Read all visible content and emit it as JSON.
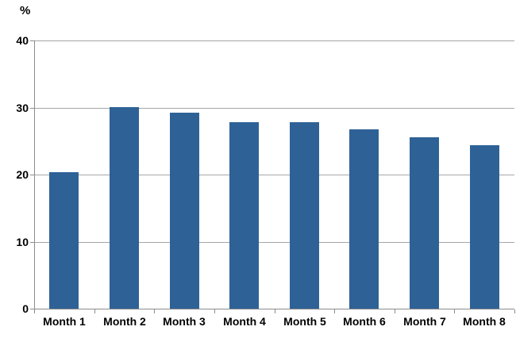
{
  "chart_data": {
    "type": "bar",
    "unit_label": "%",
    "categories": [
      "Month 1",
      "Month 2",
      "Month 3",
      "Month 4",
      "Month 5",
      "Month 6",
      "Month 7",
      "Month 8"
    ],
    "values": [
      20.4,
      30.1,
      29.2,
      27.8,
      27.8,
      26.7,
      25.6,
      24.4
    ],
    "title": "",
    "xlabel": "",
    "ylabel": "%",
    "ylim": [
      0,
      40
    ],
    "yticks": [
      0,
      10,
      20,
      30,
      40
    ],
    "grid": true,
    "legend": false,
    "colors": {
      "bar": "#2E6296",
      "gridline": "#A6A6A6",
      "axis": "#8C8C8C",
      "text": "#000000",
      "background": "#FFFFFF"
    }
  }
}
